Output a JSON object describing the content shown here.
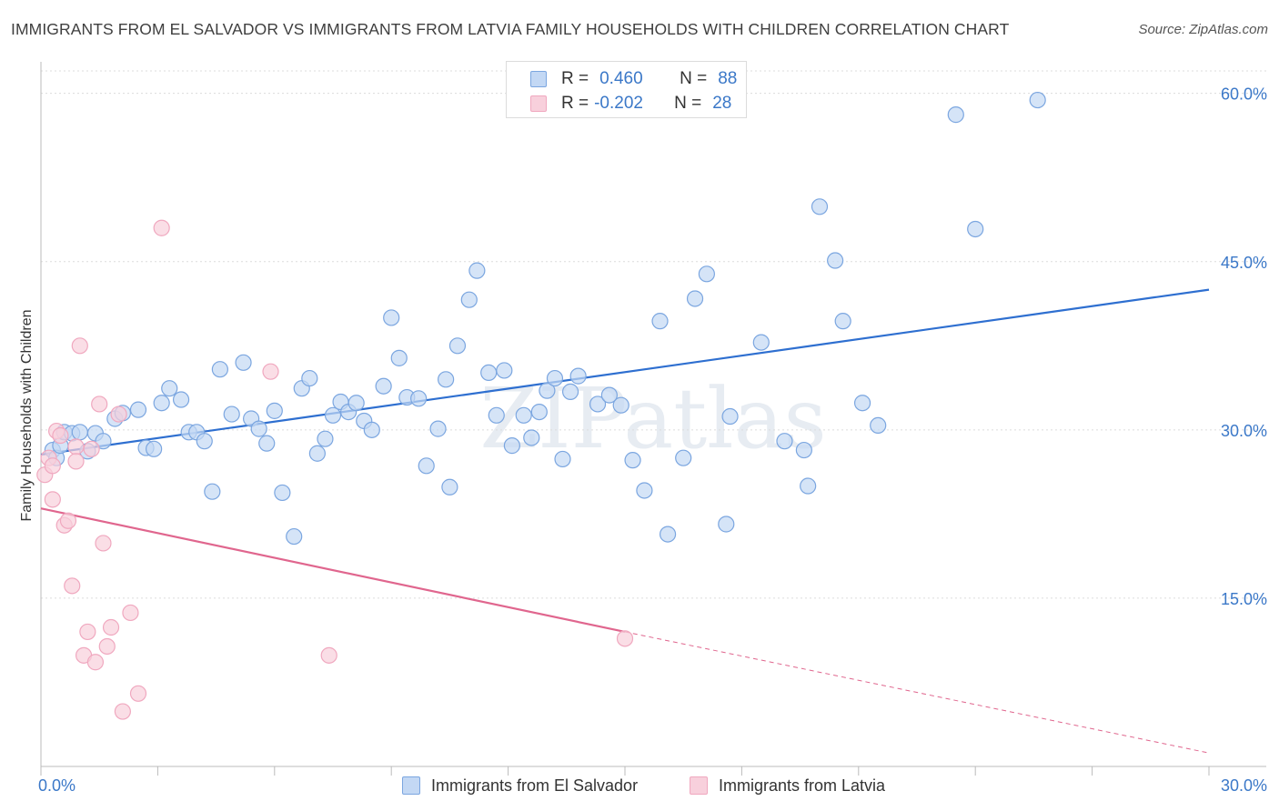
{
  "chart_data": {
    "type": "scatter",
    "title": "IMMIGRANTS FROM EL SALVADOR VS IMMIGRANTS FROM LATVIA FAMILY HOUSEHOLDS WITH CHILDREN CORRELATION CHART",
    "source": "Source: ZipAtlas.com",
    "watermark": "ZIPatlas",
    "xlabel": "",
    "ylabel": "Family Households with Children",
    "xlim": [
      0,
      30
    ],
    "ylim": [
      0,
      62
    ],
    "x_ticks": [
      {
        "value": 0,
        "label": "0.0%"
      },
      {
        "value": 30,
        "label": "30.0%"
      }
    ],
    "y_ticks": [
      {
        "value": 15,
        "label": "15.0%"
      },
      {
        "value": 30,
        "label": "30.0%"
      },
      {
        "value": 45,
        "label": "45.0%"
      },
      {
        "value": 60,
        "label": "60.0%"
      }
    ],
    "grid": {
      "horizontal": true,
      "vertical": false,
      "style": "dotted"
    },
    "legend_placement": "top-center",
    "legend": [
      {
        "r_label": "R =",
        "r_value": "0.460",
        "n_label": "N =",
        "n_value": "88"
      },
      {
        "r_label": "R =",
        "r_value": "-0.202",
        "n_label": "N =",
        "n_value": "28"
      }
    ],
    "series": [
      {
        "name": "Immigrants from El Salvador",
        "color": "#7ba6e0",
        "fill": "#c3d8f4",
        "line_color": "#2e6fd0",
        "trend": {
          "x0": 0,
          "y0": 27.8,
          "x1": 30,
          "y1": 42.5
        },
        "points": [
          [
            0.3,
            28.2
          ],
          [
            0.4,
            27.5
          ],
          [
            0.5,
            28.6
          ],
          [
            0.6,
            29.8
          ],
          [
            0.8,
            29.7
          ],
          [
            1.0,
            29.8
          ],
          [
            1.2,
            28.1
          ],
          [
            1.4,
            29.7
          ],
          [
            1.6,
            29.0
          ],
          [
            1.9,
            31.0
          ],
          [
            2.1,
            31.5
          ],
          [
            2.5,
            31.8
          ],
          [
            2.7,
            28.4
          ],
          [
            2.9,
            28.3
          ],
          [
            3.1,
            32.4
          ],
          [
            3.3,
            33.7
          ],
          [
            3.6,
            32.7
          ],
          [
            3.8,
            29.8
          ],
          [
            4.0,
            29.8
          ],
          [
            4.2,
            29.0
          ],
          [
            4.4,
            24.5
          ],
          [
            4.6,
            35.4
          ],
          [
            4.9,
            31.4
          ],
          [
            5.2,
            36.0
          ],
          [
            5.4,
            31.0
          ],
          [
            5.6,
            30.1
          ],
          [
            5.8,
            28.8
          ],
          [
            6.0,
            31.7
          ],
          [
            6.2,
            24.4
          ],
          [
            6.5,
            20.5
          ],
          [
            6.7,
            33.7
          ],
          [
            6.9,
            34.6
          ],
          [
            7.1,
            27.9
          ],
          [
            7.3,
            29.2
          ],
          [
            7.5,
            31.3
          ],
          [
            7.7,
            32.5
          ],
          [
            7.9,
            31.6
          ],
          [
            8.1,
            32.4
          ],
          [
            8.3,
            30.8
          ],
          [
            8.5,
            30.0
          ],
          [
            8.8,
            33.9
          ],
          [
            9.0,
            40.0
          ],
          [
            9.2,
            36.4
          ],
          [
            9.4,
            32.9
          ],
          [
            9.7,
            32.8
          ],
          [
            9.9,
            26.8
          ],
          [
            10.2,
            30.1
          ],
          [
            10.4,
            34.5
          ],
          [
            10.5,
            24.9
          ],
          [
            10.7,
            37.5
          ],
          [
            11.0,
            41.6
          ],
          [
            11.2,
            44.2
          ],
          [
            11.5,
            35.1
          ],
          [
            11.7,
            31.3
          ],
          [
            11.9,
            35.3
          ],
          [
            12.1,
            28.6
          ],
          [
            12.4,
            31.3
          ],
          [
            12.6,
            29.3
          ],
          [
            12.8,
            31.6
          ],
          [
            13.0,
            33.5
          ],
          [
            13.2,
            34.6
          ],
          [
            13.4,
            27.4
          ],
          [
            13.6,
            33.4
          ],
          [
            13.8,
            34.8
          ],
          [
            14.3,
            32.3
          ],
          [
            14.6,
            33.1
          ],
          [
            14.9,
            32.2
          ],
          [
            15.2,
            27.3
          ],
          [
            15.5,
            24.6
          ],
          [
            15.9,
            39.7
          ],
          [
            16.1,
            20.7
          ],
          [
            16.5,
            27.5
          ],
          [
            16.8,
            41.7
          ],
          [
            17.1,
            43.9
          ],
          [
            17.6,
            21.6
          ],
          [
            17.7,
            31.2
          ],
          [
            18.5,
            37.8
          ],
          [
            19.1,
            29.0
          ],
          [
            19.6,
            28.2
          ],
          [
            19.7,
            25.0
          ],
          [
            20.0,
            49.9
          ],
          [
            20.4,
            45.1
          ],
          [
            20.6,
            39.7
          ],
          [
            21.1,
            32.4
          ],
          [
            21.5,
            30.4
          ],
          [
            23.5,
            58.1
          ],
          [
            24.0,
            47.9
          ],
          [
            25.6,
            59.4
          ]
        ]
      },
      {
        "name": "Immigrants from Latvia",
        "color": "#f0a8bf",
        "fill": "#f8d0dc",
        "line_color": "#e0668e",
        "trend": {
          "x0": 0,
          "y0": 23.0,
          "x1": 15,
          "y1": 12.0
        },
        "trend_dashed_to": {
          "x": 30,
          "y": 1.2
        },
        "points": [
          [
            0.1,
            26.0
          ],
          [
            0.2,
            27.5
          ],
          [
            0.3,
            26.8
          ],
          [
            0.3,
            23.8
          ],
          [
            0.4,
            29.9
          ],
          [
            0.5,
            29.5
          ],
          [
            0.6,
            21.5
          ],
          [
            0.7,
            21.9
          ],
          [
            0.8,
            16.1
          ],
          [
            0.9,
            28.5
          ],
          [
            1.0,
            37.5
          ],
          [
            1.1,
            9.9
          ],
          [
            1.2,
            12.0
          ],
          [
            1.3,
            28.3
          ],
          [
            1.4,
            9.3
          ],
          [
            1.5,
            32.3
          ],
          [
            1.6,
            19.9
          ],
          [
            1.7,
            10.7
          ],
          [
            1.8,
            12.4
          ],
          [
            2.0,
            31.4
          ],
          [
            2.1,
            4.9
          ],
          [
            2.3,
            13.7
          ],
          [
            2.5,
            6.5
          ],
          [
            3.1,
            48.0
          ],
          [
            5.9,
            35.2
          ],
          [
            7.4,
            9.9
          ],
          [
            15.0,
            11.4
          ],
          [
            0.9,
            27.2
          ]
        ]
      }
    ]
  }
}
